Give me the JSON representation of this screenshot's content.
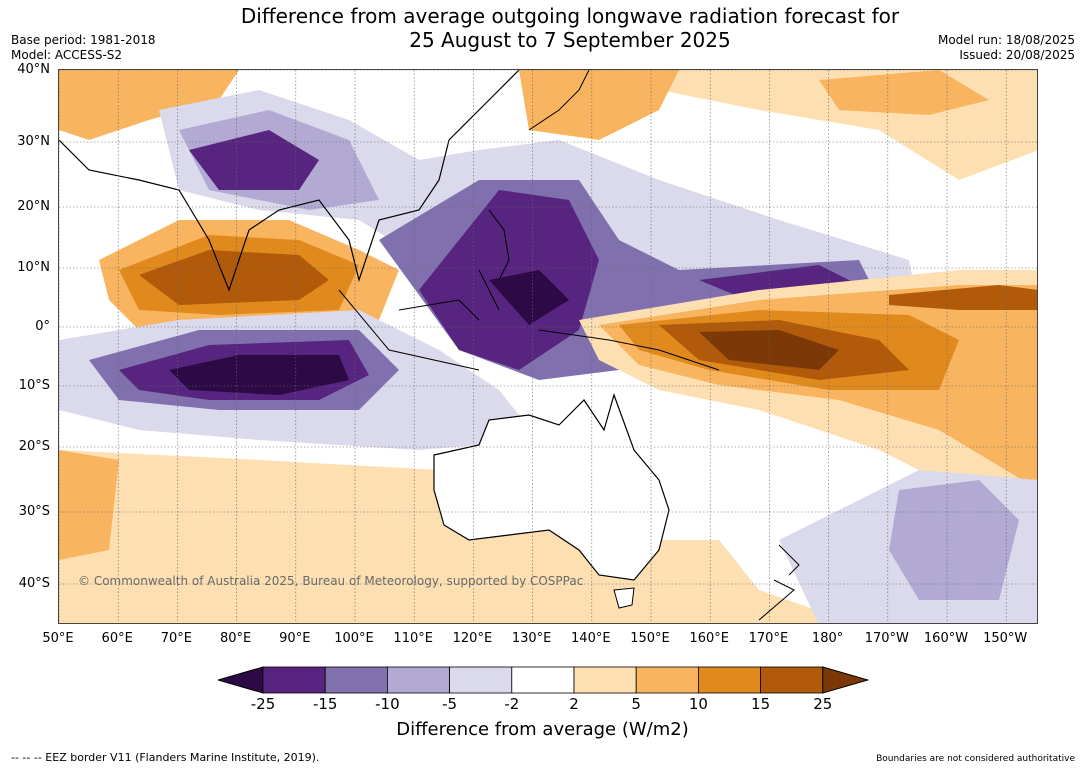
{
  "header": {
    "title_line1": "Difference from average outgoing longwave radiation forecast for",
    "title_line2": "25 August to 7 September 2025",
    "base_period": "Base period: 1981-2018",
    "model": "Model: ACCESS-S2",
    "model_run": "Model run: 18/08/2025",
    "issued": "Issued: 20/08/2025"
  },
  "map": {
    "lat_labels": [
      "40°N",
      "30°N",
      "20°N",
      "10°N",
      "0°",
      "10°S",
      "20°S",
      "30°S",
      "40°S"
    ],
    "lon_labels": [
      "50°E",
      "60°E",
      "70°E",
      "80°E",
      "90°E",
      "100°E",
      "110°E",
      "120°E",
      "130°E",
      "140°E",
      "150°E",
      "160°E",
      "170°E",
      "180°",
      "170°W",
      "160°W",
      "150°W"
    ],
    "copyright": "© Commonwealth of Australia 2025, Bureau of Meteorology, supported by COSPPac"
  },
  "colorbar": {
    "ticks": [
      "-25",
      "-15",
      "-10",
      "-5",
      "-2",
      "2",
      "5",
      "10",
      "15",
      "25"
    ],
    "label": "Difference from average (W/m2)",
    "colors": {
      "lt_neg25": "#2d0a45",
      "neg25_neg15": "#57257f",
      "neg15_neg10": "#8071ae",
      "neg10_neg5": "#b2aad3",
      "neg5_neg2": "#dadaec",
      "neg2_2": "#ffffff",
      "2_5": "#fddfb2",
      "5_10": "#f8b45e",
      "10_15": "#e08a1e",
      "15_25": "#b15a0a",
      "gt_25": "#7d3807"
    }
  },
  "footer": {
    "eez_note": "--  --  -- EEZ border V11 (Flanders Marine Institute, 2019).",
    "boundaries_note": "Boundaries are not considered authoritative"
  }
}
